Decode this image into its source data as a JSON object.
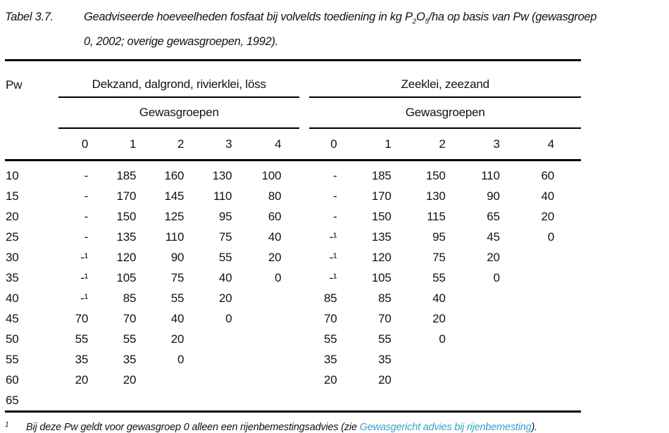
{
  "title": {
    "label": "Tabel 3.7.",
    "line1_pre": "Geadviseerde hoeveelheden fosfaat bij volvelds toediening in kg P",
    "line1_sub1": "2",
    "line1_o": "O",
    "line1_sub2": "5",
    "line1_post": "/ha op basis van Pw (gewasgroep",
    "line2": "0, 2002; overige gewasgroepen, 1992)."
  },
  "table": {
    "pw_header": "Pw",
    "group1_header": "Dekzand, dalgrond, rivierklei, löss",
    "group2_header": "Zeeklei, zeezand",
    "subheader": "Gewasgroepen",
    "col_headers": [
      "0",
      "1",
      "2",
      "3",
      "4"
    ],
    "rows": [
      {
        "pw": "10",
        "g1": [
          "-",
          "185",
          "160",
          "130",
          "100"
        ],
        "g2": [
          "-",
          "185",
          "150",
          "110",
          "60"
        ]
      },
      {
        "pw": "15",
        "g1": [
          "-",
          "170",
          "145",
          "110",
          "80"
        ],
        "g2": [
          "-",
          "170",
          "130",
          "90",
          "40"
        ]
      },
      {
        "pw": "20",
        "g1": [
          "-",
          "150",
          "125",
          "95",
          "60"
        ],
        "g2": [
          "-",
          "150",
          "115",
          "65",
          "20"
        ]
      },
      {
        "pw": "25",
        "g1": [
          "-",
          "135",
          "110",
          "75",
          "40"
        ],
        "g2": [
          "-¹",
          "135",
          "95",
          "45",
          "0"
        ]
      },
      {
        "pw": "30",
        "g1": [
          "-¹",
          "120",
          "90",
          "55",
          "20"
        ],
        "g2": [
          "-¹",
          "120",
          "75",
          "20",
          ""
        ]
      },
      {
        "pw": "35",
        "g1": [
          "-¹",
          "105",
          "75",
          "40",
          "0"
        ],
        "g2": [
          "-¹",
          "105",
          "55",
          "0",
          ""
        ]
      },
      {
        "pw": "40",
        "g1": [
          "-¹",
          "85",
          "55",
          "20",
          ""
        ],
        "g2": [
          "85",
          "85",
          "40",
          "",
          ""
        ]
      },
      {
        "pw": "45",
        "g1": [
          "70",
          "70",
          "40",
          "0",
          ""
        ],
        "g2": [
          "70",
          "70",
          "20",
          "",
          ""
        ]
      },
      {
        "pw": "50",
        "g1": [
          "55",
          "55",
          "20",
          "",
          ""
        ],
        "g2": [
          "55",
          "55",
          "0",
          "",
          ""
        ]
      },
      {
        "pw": "55",
        "g1": [
          "35",
          "35",
          "0",
          "",
          ""
        ],
        "g2": [
          "35",
          "35",
          "",
          "",
          ""
        ]
      },
      {
        "pw": "60",
        "g1": [
          "20",
          "20",
          "",
          "",
          ""
        ],
        "g2": [
          "20",
          "20",
          "",
          "",
          ""
        ]
      },
      {
        "pw": "65",
        "g1": [
          "",
          "",
          "",
          "",
          ""
        ],
        "g2": [
          "",
          "",
          "",
          "",
          ""
        ]
      }
    ]
  },
  "footnote": {
    "marker": "1",
    "text_before_link": "Bij deze Pw geldt voor gewasgroep 0 alleen een rijenbemestingsadvies (zie ",
    "link_text": "Gewasgericht advies bij rijenbemesting",
    "text_after_link": ")."
  },
  "colors": {
    "link": "#3f9ec9",
    "text": "#121212",
    "rule": "#000000"
  }
}
